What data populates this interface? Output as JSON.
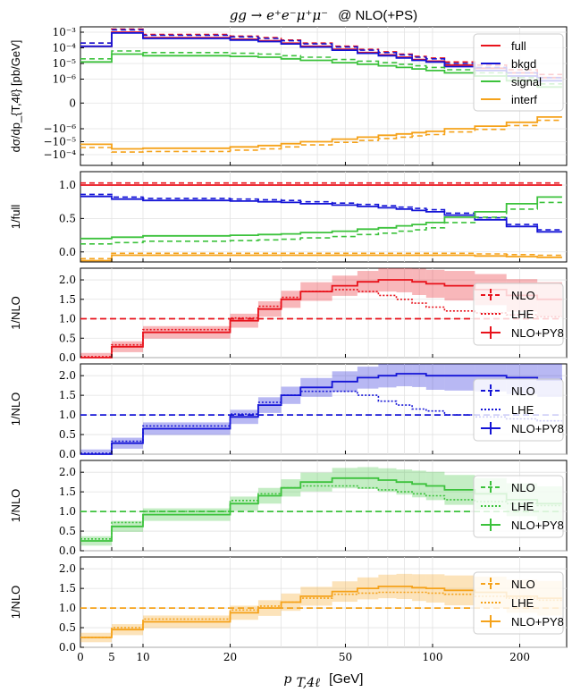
{
  "title_math": "gg → e⁺e⁻μ⁺μ⁻",
  "title_text": "@ NLO(+PS)",
  "xlabel_math": "p",
  "xlabel_sub": "T,4ℓ",
  "xlabel_unit": "[GeV]",
  "x_ticks": [
    "0",
    "5",
    "10",
    "20",
    "50",
    "100",
    "200"
  ],
  "colors": {
    "full": "#e8121b",
    "bkgd": "#1414d6",
    "signal": "#3cc23c",
    "interf": "#f5a21a"
  },
  "chart_data": [
    {
      "type": "line",
      "panel": "main",
      "ylabel": "dσ/dp_{T,4ℓ} [pb/GeV]",
      "y_ticks": [
        "10⁻³",
        "10⁻⁴",
        "10⁻⁵",
        "10⁻⁶",
        "0",
        "−10⁻⁶",
        "−10⁻⁵",
        "−10⁻⁴"
      ],
      "legend": [
        "full",
        "bkgd",
        "signal",
        "interf"
      ],
      "legend_position": "top-right",
      "x": [
        2.5,
        7.5,
        15,
        22.5,
        27.5,
        32.5,
        40,
        50,
        60,
        70,
        80,
        90,
        100,
        125,
        150,
        200,
        250
      ],
      "series": [
        {
          "name": "full",
          "values": [
            -3.9,
            -3.0,
            -3.35,
            -3.45,
            -3.55,
            -3.7,
            -3.9,
            -4.1,
            -4.3,
            -4.45,
            -4.6,
            -4.75,
            -4.85,
            -5.1,
            -5.3,
            -5.6,
            -5.9
          ]
        },
        {
          "name": "bkgd",
          "values": [
            -3.9,
            -3.05,
            -3.4,
            -3.5,
            -3.6,
            -3.75,
            -3.95,
            -4.15,
            -4.35,
            -4.5,
            -4.65,
            -4.8,
            -4.9,
            -5.2,
            -5.45,
            -5.8,
            -6.1
          ]
        },
        {
          "name": "signal",
          "values": [
            -4.9,
            -4.4,
            -4.5,
            -4.55,
            -4.6,
            -4.7,
            -4.8,
            -4.95,
            -5.05,
            -5.15,
            -5.25,
            -5.35,
            -5.45,
            -5.6,
            -5.8,
            -6.1,
            -6.5
          ]
        },
        {
          "name": "interf",
          "values": [
            4.8,
            4.45,
            4.5,
            4.6,
            4.7,
            4.85,
            5.0,
            5.2,
            5.35,
            5.5,
            5.6,
            5.7,
            5.8,
            6.0,
            6.2,
            6.5,
            6.9
          ]
        }
      ]
    },
    {
      "type": "line",
      "panel": "ratio_full",
      "ylabel": "1/full",
      "y_ticks": [
        "1.0",
        "0.5",
        "0.0"
      ],
      "ylim": [
        -0.15,
        1.2
      ],
      "x": [
        2.5,
        7.5,
        15,
        22.5,
        27.5,
        32.5,
        40,
        50,
        60,
        70,
        80,
        90,
        100,
        125,
        150,
        200,
        250
      ],
      "series": [
        {
          "name": "full",
          "values": [
            1,
            1,
            1,
            1,
            1,
            1,
            1,
            1,
            1,
            1,
            1,
            1,
            1,
            1,
            1,
            1,
            1
          ]
        },
        {
          "name": "bkgd",
          "values": [
            0.83,
            0.79,
            0.77,
            0.76,
            0.75,
            0.74,
            0.72,
            0.7,
            0.68,
            0.66,
            0.64,
            0.62,
            0.6,
            0.55,
            0.48,
            0.38,
            0.3
          ]
        },
        {
          "name": "signal",
          "values": [
            0.2,
            0.22,
            0.24,
            0.25,
            0.26,
            0.27,
            0.29,
            0.31,
            0.34,
            0.36,
            0.39,
            0.41,
            0.44,
            0.52,
            0.6,
            0.72,
            0.82
          ]
        },
        {
          "name": "interf",
          "values": [
            -0.13,
            -0.05,
            -0.05,
            -0.05,
            -0.05,
            -0.05,
            -0.05,
            -0.05,
            -0.05,
            -0.05,
            -0.05,
            -0.05,
            -0.05,
            -0.05,
            -0.06,
            -0.07,
            -0.08
          ]
        }
      ]
    },
    {
      "type": "line",
      "panel": "ratio_nlo_full",
      "ylabel": "1/NLO",
      "y_ticks": [
        "2.0",
        "1.5",
        "1.0",
        "0.5",
        "0.0"
      ],
      "ylim": [
        0,
        2.3
      ],
      "legend": [
        "NLO",
        "LHE",
        "NLO+PY8"
      ],
      "legend_position": "right",
      "x": [
        2.5,
        7.5,
        15,
        22.5,
        27.5,
        32.5,
        40,
        50,
        60,
        70,
        80,
        90,
        100,
        125,
        150,
        200,
        250
      ],
      "series": [
        {
          "name": "NLO",
          "values": [
            1,
            1,
            1,
            1,
            1,
            1,
            1,
            1,
            1,
            1,
            1,
            1,
            1,
            1,
            1,
            1,
            1
          ]
        },
        {
          "name": "LHE",
          "values": [
            0.02,
            0.33,
            0.72,
            1.02,
            1.32,
            1.55,
            1.7,
            1.75,
            1.7,
            1.6,
            1.5,
            1.4,
            1.3,
            1.2,
            1.15,
            1.1,
            1.05
          ]
        },
        {
          "name": "NLO+PY8",
          "values": [
            0.0,
            0.28,
            0.65,
            0.95,
            1.25,
            1.5,
            1.7,
            1.85,
            1.95,
            2.0,
            2.0,
            1.95,
            1.9,
            1.85,
            1.75,
            1.6,
            1.5
          ]
        }
      ]
    },
    {
      "type": "line",
      "panel": "ratio_nlo_bkgd",
      "ylabel": "1/NLO",
      "y_ticks": [
        "2.0",
        "1.5",
        "1.0",
        "0.5",
        "0.0"
      ],
      "ylim": [
        0,
        2.3
      ],
      "legend": [
        "NLO",
        "LHE",
        "NLO+PY8"
      ],
      "legend_position": "right",
      "x": [
        2.5,
        7.5,
        15,
        22.5,
        27.5,
        32.5,
        40,
        50,
        60,
        70,
        80,
        90,
        100,
        125,
        150,
        200,
        250
      ],
      "series": [
        {
          "name": "NLO",
          "values": [
            1,
            1,
            1,
            1,
            1,
            1,
            1,
            1,
            1,
            1,
            1,
            1,
            1,
            1,
            1,
            1,
            1
          ]
        },
        {
          "name": "LHE",
          "values": [
            0.02,
            0.33,
            0.72,
            1.02,
            1.32,
            1.5,
            1.6,
            1.6,
            1.5,
            1.35,
            1.25,
            1.15,
            1.1,
            1.0,
            0.95,
            0.9,
            0.85
          ]
        },
        {
          "name": "NLO+PY8",
          "values": [
            0.0,
            0.28,
            0.65,
            0.95,
            1.25,
            1.5,
            1.7,
            1.85,
            1.95,
            2.0,
            2.05,
            2.05,
            2.0,
            2.0,
            2.0,
            1.95,
            1.9
          ]
        }
      ]
    },
    {
      "type": "line",
      "panel": "ratio_nlo_signal",
      "ylabel": "1/NLO",
      "y_ticks": [
        "2.0",
        "1.5",
        "1.0",
        "0.5",
        "0.0"
      ],
      "ylim": [
        0,
        2.3
      ],
      "legend": [
        "NLO",
        "LHE",
        "NLO+PY8"
      ],
      "legend_position": "right",
      "x": [
        2.5,
        7.5,
        15,
        22.5,
        27.5,
        32.5,
        40,
        50,
        60,
        70,
        80,
        90,
        100,
        125,
        150,
        200,
        250
      ],
      "series": [
        {
          "name": "NLO",
          "values": [
            1,
            1,
            1,
            1,
            1,
            1,
            1,
            1,
            1,
            1,
            1,
            1,
            1,
            1,
            1,
            1,
            1
          ]
        },
        {
          "name": "LHE",
          "values": [
            0.3,
            0.72,
            1.0,
            1.28,
            1.45,
            1.6,
            1.65,
            1.65,
            1.6,
            1.55,
            1.5,
            1.45,
            1.4,
            1.3,
            1.25,
            1.2,
            1.15
          ]
        },
        {
          "name": "NLO+PY8",
          "values": [
            0.25,
            0.62,
            0.92,
            1.2,
            1.4,
            1.6,
            1.75,
            1.85,
            1.85,
            1.8,
            1.75,
            1.7,
            1.65,
            1.55,
            1.45,
            1.3,
            1.2
          ]
        }
      ]
    },
    {
      "type": "line",
      "panel": "ratio_nlo_interf",
      "ylabel": "1/NLO",
      "y_ticks": [
        "2.0",
        "1.5",
        "1.0",
        "0.5",
        "0.0"
      ],
      "ylim": [
        0,
        2.3
      ],
      "legend": [
        "NLO",
        "LHE",
        "NLO+PY8"
      ],
      "legend_position": "right",
      "x": [
        2.5,
        7.5,
        15,
        22.5,
        27.5,
        32.5,
        40,
        50,
        60,
        70,
        80,
        90,
        100,
        125,
        150,
        200,
        250
      ],
      "series": [
        {
          "name": "NLO",
          "values": [
            1,
            1,
            1,
            1,
            1,
            1,
            1,
            1,
            1,
            1,
            1,
            1,
            1,
            1,
            1,
            1,
            1
          ]
        },
        {
          "name": "LHE",
          "values": [
            0.25,
            0.5,
            0.72,
            0.95,
            1.05,
            1.15,
            1.25,
            1.35,
            1.38,
            1.4,
            1.4,
            1.4,
            1.38,
            1.35,
            1.3,
            1.25,
            1.2
          ]
        },
        {
          "name": "NLO+PY8",
          "values": [
            0.25,
            0.45,
            0.65,
            0.88,
            1.0,
            1.15,
            1.3,
            1.42,
            1.5,
            1.55,
            1.55,
            1.52,
            1.5,
            1.45,
            1.4,
            1.3,
            1.25
          ]
        }
      ]
    }
  ]
}
